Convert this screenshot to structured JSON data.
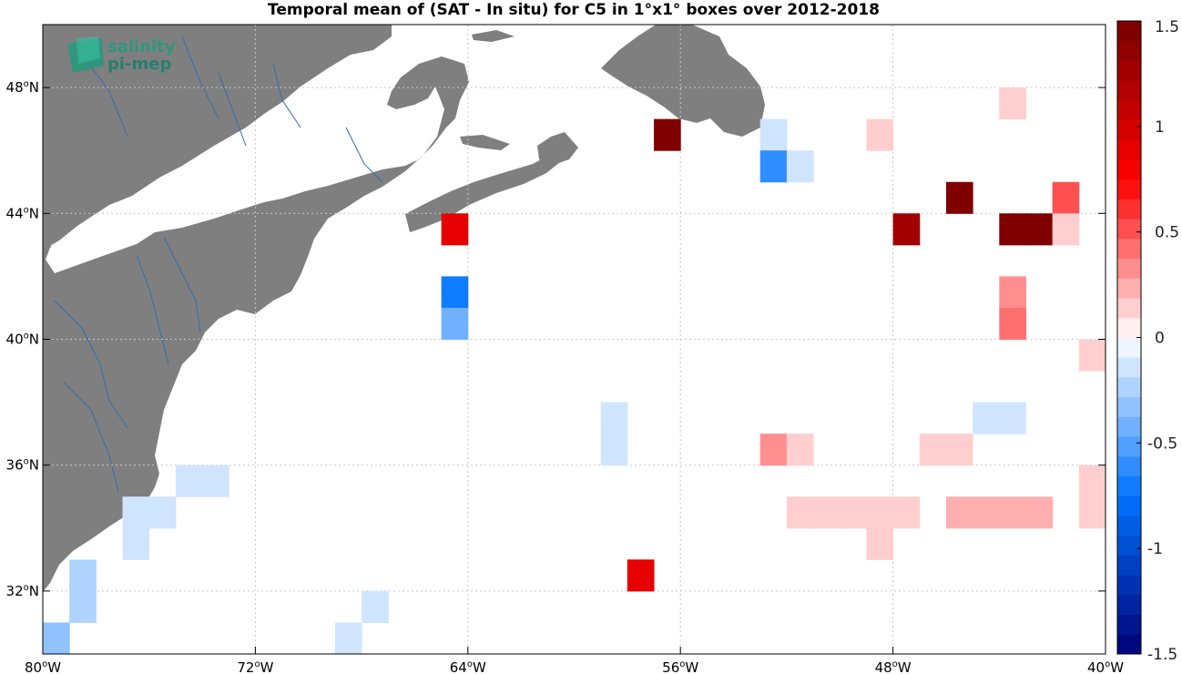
{
  "title": "Temporal mean of (SAT - In situ) for C5 in 1°x1° boxes over 2012-2018",
  "logo": {
    "line1": "salinity",
    "line2": "pi-mep"
  },
  "axes": {
    "lon_ticks": [
      {
        "value": -80,
        "text": "80",
        "suffix": "W"
      },
      {
        "value": -72,
        "text": "72",
        "suffix": "W"
      },
      {
        "value": -64,
        "text": "64",
        "suffix": "W"
      },
      {
        "value": -56,
        "text": "56",
        "suffix": "W"
      },
      {
        "value": -48,
        "text": "48",
        "suffix": "W"
      },
      {
        "value": -40,
        "text": "40",
        "suffix": "W"
      }
    ],
    "lat_ticks": [
      {
        "value": 48,
        "text": "48",
        "suffix": "N"
      },
      {
        "value": 44,
        "text": "44",
        "suffix": "N"
      },
      {
        "value": 40,
        "text": "40",
        "suffix": "N"
      },
      {
        "value": 36,
        "text": "36",
        "suffix": "N"
      },
      {
        "value": 32,
        "text": "32",
        "suffix": "N"
      }
    ],
    "lon_range": [
      -80,
      -40
    ],
    "lat_range": [
      30,
      50
    ]
  },
  "colorbar": {
    "range": [
      -1.5,
      1.5
    ],
    "ticks": [
      {
        "value": 1.5,
        "text": "1.5"
      },
      {
        "value": 1,
        "text": "1"
      },
      {
        "value": 0.5,
        "text": "0.5"
      },
      {
        "value": 0,
        "text": "0"
      },
      {
        "value": -0.5,
        "text": "-0.5"
      },
      {
        "value": -1,
        "text": "-1"
      },
      {
        "value": -1.5,
        "text": "-1.5"
      }
    ]
  },
  "colors": {
    "land": "#7f7f7f",
    "rivers": "#2c6fb0",
    "grid": "#c8c8c8"
  },
  "chart_data": {
    "type": "heatmap",
    "title": "Temporal mean of (SAT - In situ) for C5 in 1°x1° boxes over 2012-2018",
    "xlabel": "",
    "ylabel": "",
    "x_range": [
      -80,
      -40
    ],
    "y_range": [
      30,
      50
    ],
    "value_range": [
      -1.5,
      1.5
    ],
    "grid": true,
    "legend_position": "right",
    "cells": [
      {
        "lon": -57,
        "lat": 46,
        "value": 1.5
      },
      {
        "lon": -53,
        "lat": 46,
        "value": -0.1
      },
      {
        "lon": -49,
        "lat": 46,
        "value": 0.15
      },
      {
        "lon": -53,
        "lat": 45,
        "value": -0.6
      },
      {
        "lon": -52,
        "lat": 45,
        "value": -0.1
      },
      {
        "lon": -44,
        "lat": 47,
        "value": 0.15
      },
      {
        "lon": -46,
        "lat": 44,
        "value": 1.5
      },
      {
        "lon": -42,
        "lat": 44,
        "value": 0.5
      },
      {
        "lon": -65,
        "lat": 43,
        "value": 0.85
      },
      {
        "lon": -48,
        "lat": 43,
        "value": 1.3
      },
      {
        "lon": -44,
        "lat": 43,
        "value": 1.5
      },
      {
        "lon": -43,
        "lat": 43,
        "value": 1.5
      },
      {
        "lon": -42,
        "lat": 43,
        "value": 0.15
      },
      {
        "lon": -65,
        "lat": 41,
        "value": -0.7
      },
      {
        "lon": -65,
        "lat": 40,
        "value": -0.4
      },
      {
        "lon": -44,
        "lat": 41,
        "value": 0.3
      },
      {
        "lon": -44,
        "lat": 40,
        "value": 0.45
      },
      {
        "lon": -41,
        "lat": 39,
        "value": 0.15
      },
      {
        "lon": -59,
        "lat": 37,
        "value": -0.1
      },
      {
        "lon": -59,
        "lat": 36,
        "value": -0.1
      },
      {
        "lon": -45,
        "lat": 37,
        "value": -0.1
      },
      {
        "lon": -44,
        "lat": 37,
        "value": -0.1
      },
      {
        "lon": -53,
        "lat": 36,
        "value": 0.3
      },
      {
        "lon": -52,
        "lat": 36,
        "value": 0.15
      },
      {
        "lon": -47,
        "lat": 36,
        "value": 0.15
      },
      {
        "lon": -46,
        "lat": 36,
        "value": 0.15
      },
      {
        "lon": -75,
        "lat": 35,
        "value": -0.1
      },
      {
        "lon": -74,
        "lat": 35,
        "value": -0.1
      },
      {
        "lon": -41,
        "lat": 35,
        "value": 0.15
      },
      {
        "lon": -40,
        "lat": 35,
        "value": 0.15
      },
      {
        "lon": -77,
        "lat": 34,
        "value": -0.1
      },
      {
        "lon": -76,
        "lat": 34,
        "value": -0.1
      },
      {
        "lon": -52,
        "lat": 34,
        "value": 0.15
      },
      {
        "lon": -51,
        "lat": 34,
        "value": 0.15
      },
      {
        "lon": -50,
        "lat": 34,
        "value": 0.15
      },
      {
        "lon": -49,
        "lat": 34,
        "value": 0.15
      },
      {
        "lon": -48,
        "lat": 34,
        "value": 0.15
      },
      {
        "lon": -46,
        "lat": 34,
        "value": 0.25
      },
      {
        "lon": -45,
        "lat": 34,
        "value": 0.25
      },
      {
        "lon": -44,
        "lat": 34,
        "value": 0.25
      },
      {
        "lon": -43,
        "lat": 34,
        "value": 0.25
      },
      {
        "lon": -41,
        "lat": 34,
        "value": 0.15
      },
      {
        "lon": -77,
        "lat": 33,
        "value": -0.1
      },
      {
        "lon": -49,
        "lat": 33,
        "value": 0.15
      },
      {
        "lon": -79,
        "lat": 32,
        "value": -0.2
      },
      {
        "lon": -58,
        "lat": 32,
        "value": 0.85
      },
      {
        "lon": -79,
        "lat": 31,
        "value": -0.2
      },
      {
        "lon": -68,
        "lat": 31,
        "value": -0.1
      },
      {
        "lon": -80,
        "lat": 30,
        "value": -0.3
      },
      {
        "lon": -69,
        "lat": 30,
        "value": -0.1
      }
    ]
  }
}
